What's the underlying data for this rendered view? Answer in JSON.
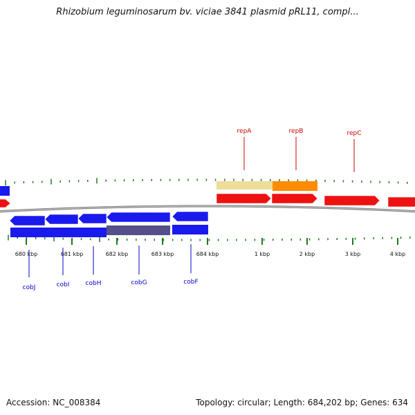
{
  "title": "Rhizobium leguminosarum bv. viciae 3841 plasmid pRL11, compl...",
  "ticks": {
    "labels": [
      "680 kbp",
      "681 kbp",
      "682 kbp",
      "683 kbp",
      "684 kbp",
      "1 kbp",
      "2 kbp",
      "3 kbp",
      "4 kbp"
    ]
  },
  "genes": {
    "plus_strand_labels": [
      "repA",
      "repB",
      "repC"
    ],
    "minus_strand_labels": [
      "cobJ",
      "cobI",
      "cobH",
      "cobG",
      "cobF"
    ]
  },
  "colors": {
    "backbone": "#808080",
    "tick": "#1a7a1a",
    "plus_gene": "#ee1111",
    "minus_gene": "#1a1aee",
    "plus_label": "#cc0000",
    "minus_label": "#0000cc",
    "highlight_cds": "#ff8c00",
    "highlight_gene": "#eedd99",
    "highlight_minus": "#55508a"
  },
  "footer": {
    "accession_label": "Accession:",
    "accession_value": "NC_008384",
    "topology_label": "Topology:",
    "topology_value": "circular",
    "length_label": "Length:",
    "length_value": "684,202 bp",
    "genes_label": "Genes:",
    "genes_value": "634"
  }
}
